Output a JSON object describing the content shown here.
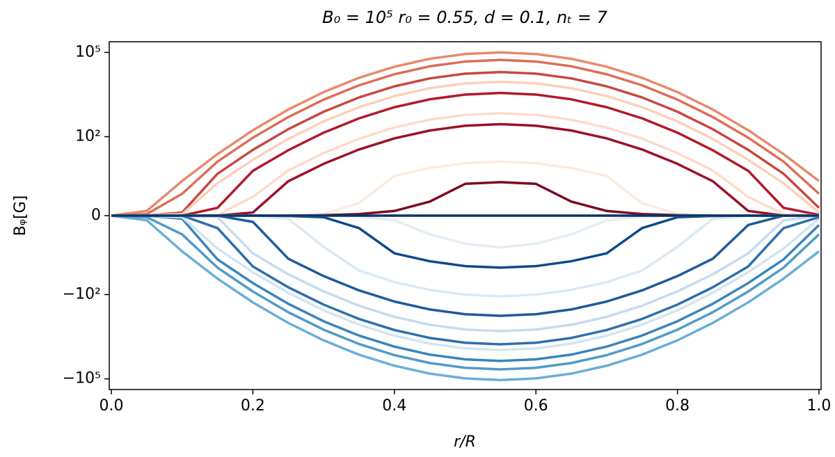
{
  "chart_data": {
    "type": "line",
    "title": "B₀ = 10⁵ r₀ = 0.55,  d = 0.1,  nₜ = 7",
    "xlabel": "r/R",
    "ylabel": "Bᵩ[G]",
    "yscale": "symlog",
    "linthresh": 2,
    "xlim": [
      -0.003,
      1.003
    ],
    "ylim": [
      -240000,
      240000
    ],
    "xticks": [
      {
        "value": 0,
        "label": "0.0"
      },
      0.2,
      0.4,
      0.6,
      0.8,
      {
        "value": 1,
        "label": "1.0"
      }
    ],
    "yticks": [
      {
        "value": -100000,
        "label": "−10⁵"
      },
      {
        "value": -100,
        "label": "−10²"
      },
      0,
      {
        "value": 100,
        "label": "10²"
      },
      {
        "value": 100000,
        "label": "10⁵"
      }
    ],
    "x": [
      0,
      0.05,
      0.1,
      0.15,
      0.2,
      0.25,
      0.3,
      0.35,
      0.4,
      0.45,
      0.5,
      0.55,
      0.6,
      0.65,
      0.7,
      0.75,
      0.8,
      0.85,
      0.9,
      0.95,
      1
    ],
    "series": [
      {
        "color": "#e8896c",
        "values": [
          0,
          0.3,
          2.65,
          24,
          170,
          925,
          3870,
          12500,
          31000,
          59400,
          87800,
          100000,
          87800,
          59400,
          31000,
          12500,
          3870,
          925,
          170,
          24,
          2.65
        ]
      },
      {
        "color": "#dc6e57",
        "values": [
          0,
          0.1,
          1.4,
          13,
          92,
          500,
          2090,
          6750,
          16700,
          32100,
          47400,
          54000,
          47400,
          32100,
          16700,
          6750,
          2090,
          500,
          92,
          13,
          1.4
        ]
      },
      {
        "color": "#c94741",
        "values": [
          0,
          0,
          0.2,
          4.8,
          34,
          185,
          774,
          2500,
          6200,
          11900,
          17600,
          20000,
          17600,
          11900,
          6200,
          2500,
          774,
          185,
          34,
          4.8,
          0.5
        ]
      },
      {
        "color": "#fbd0b9",
        "values": [
          0,
          0,
          0.1,
          2.2,
          15,
          83,
          350,
          1120,
          2790,
          5350,
          7900,
          9000,
          7900,
          5350,
          2790,
          1120,
          350,
          83,
          15,
          2.2,
          0.2
        ]
      },
      {
        "color": "#b2182b",
        "values": [
          0,
          0,
          0,
          0.5,
          6.1,
          33,
          139,
          450,
          1120,
          2140,
          3160,
          3600,
          3160,
          2140,
          1120,
          450,
          139,
          33,
          6.1,
          0.5,
          0.05
        ]
      },
      {
        "color": "#fcdbc7",
        "values": [
          0,
          0,
          0,
          0.05,
          1.2,
          6.3,
          26,
          85,
          211,
          404,
          597,
          680,
          597,
          404,
          211,
          85,
          26,
          6.3,
          1.2,
          0.1,
          0
        ]
      },
      {
        "color": "#9b1029",
        "values": [
          0,
          0,
          0,
          0,
          0.2,
          2.6,
          10.8,
          35,
          87,
          166,
          246,
          280,
          246,
          166,
          87,
          35,
          10.8,
          2.6,
          0.3,
          0,
          0
        ]
      },
      {
        "color": "#fde9df",
        "values": [
          0,
          0,
          0,
          0,
          0,
          0.02,
          0.1,
          0.8,
          4.0,
          7.7,
          11.4,
          13,
          11.4,
          7.7,
          4.0,
          0.8,
          0.1,
          0.02,
          0,
          0,
          0
        ]
      },
      {
        "color": "#7b0b22",
        "values": [
          0,
          0,
          0,
          0,
          0,
          0,
          0.03,
          0.1,
          0.3,
          0.9,
          2.1,
          2.4,
          2.1,
          0.9,
          0.3,
          0.1,
          0.03,
          0,
          0,
          0,
          0
        ]
      },
      {
        "color": "#6aaed6",
        "values": [
          0,
          -0.3,
          -2.9,
          -27,
          -190,
          -1020,
          -4260,
          -13800,
          -34100,
          -65300,
          -96600,
          -110000,
          -96600,
          -65300,
          -34100,
          -13800,
          -4260,
          -1020,
          -190,
          -27,
          -2.9
        ]
      },
      {
        "color": "#4f9bc7",
        "values": [
          0,
          -0.1,
          -1.2,
          -11,
          -78,
          -425,
          -1780,
          -5750,
          -14300,
          -27300,
          -40400,
          -46000,
          -40400,
          -27300,
          -14300,
          -5750,
          -1780,
          -425,
          -78,
          -11,
          -1.2
        ]
      },
      {
        "color": "#3a84bb",
        "values": [
          0,
          0,
          -0.2,
          -5.6,
          -39,
          -213,
          -890,
          -2880,
          -7130,
          -13700,
          -20200,
          -23000,
          -20200,
          -13700,
          -7130,
          -2880,
          -890,
          -213,
          -39,
          -5.6,
          -0.6
        ]
      },
      {
        "color": "#d1e5f0",
        "values": [
          0,
          0,
          -0.1,
          -2.3,
          -16,
          -87,
          -364,
          -1180,
          -2910,
          -5580,
          -8250,
          -9400,
          -8250,
          -5580,
          -2910,
          -1180,
          -364,
          -87,
          -16,
          -2.3,
          -0.2
        ]
      },
      {
        "color": "#2c6fae",
        "values": [
          0,
          0,
          0,
          -0.8,
          -10,
          -55,
          -228,
          -738,
          -1830,
          -3500,
          -5180,
          -5900,
          -5180,
          -3500,
          -1830,
          -738,
          -228,
          -55,
          -10,
          -0.8,
          -0.1
        ]
      },
      {
        "color": "#c6dbef",
        "values": [
          0,
          0,
          0,
          -0.1,
          -3.4,
          -19,
          -77,
          -250,
          -620,
          -1190,
          -1760,
          -2000,
          -1760,
          -1190,
          -620,
          -250,
          -77,
          -19,
          -3.4,
          -0.3,
          0
        ]
      },
      {
        "color": "#1c5a9a",
        "values": [
          0,
          0,
          0,
          0,
          -0.4,
          -5.3,
          -22,
          -71,
          -177,
          -339,
          -500,
          -570,
          -500,
          -339,
          -177,
          -71,
          -22,
          -5.3,
          -0.6,
          0,
          0
        ]
      },
      {
        "color": "#dbe9f4",
        "values": [
          0,
          0,
          0,
          0,
          0,
          -0.2,
          -2.0,
          -14,
          -36,
          -68,
          -101,
          -115,
          -101,
          -68,
          -36,
          -14,
          -2.0,
          -0.2,
          0,
          0,
          0
        ]
      },
      {
        "color": "#0b4a8a",
        "values": [
          0,
          0,
          0,
          0,
          0,
          -0.02,
          -0.1,
          -0.8,
          -3.4,
          -6.5,
          -9.7,
          -11,
          -9.7,
          -6.5,
          -3.4,
          -0.8,
          -0.1,
          -0.02,
          0,
          0,
          0
        ]
      },
      {
        "color": "#e4eef6",
        "values": [
          0,
          0,
          0,
          0,
          0,
          0,
          0,
          -0.05,
          -0.3,
          -1.2,
          -1.8,
          -2.1,
          -1.8,
          -1.2,
          -0.3,
          -0.05,
          0,
          0,
          0,
          0,
          0
        ]
      },
      {
        "color": "#083469",
        "values": [
          0,
          0,
          0,
          0,
          0,
          0,
          0,
          0,
          0,
          0,
          0,
          0,
          0,
          0,
          0,
          0,
          0,
          0,
          0,
          0,
          0
        ]
      }
    ]
  }
}
